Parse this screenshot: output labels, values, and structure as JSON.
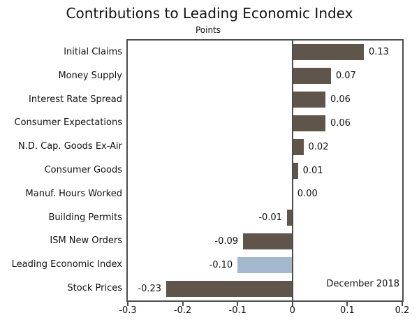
{
  "chart_data": {
    "type": "bar",
    "orientation": "horizontal",
    "title": "Contributions to Leading Economic Index",
    "units_label": "Points",
    "categories": [
      "Initial Claims",
      "Money Supply",
      "Interest Rate Spread",
      "Consumer Expectations",
      "N.D. Cap. Goods Ex-Air",
      "Consumer Goods",
      "Manuf. Hours Worked",
      "Building Permits",
      "ISM New Orders",
      "Leading Economic Index",
      "Stock Prices"
    ],
    "values": [
      0.13,
      0.07,
      0.06,
      0.06,
      0.02,
      0.01,
      0.0,
      -0.01,
      -0.09,
      -0.1,
      -0.23
    ],
    "value_labels": [
      "0.13",
      "0.07",
      "0.06",
      "0.06",
      "0.02",
      "0.01",
      "0.00",
      "-0.01",
      "-0.09",
      "-0.10",
      "-0.23"
    ],
    "annotation": "December 2018",
    "xlim": [
      -0.3,
      0.2
    ],
    "xticks": [
      -0.3,
      -0.2,
      -0.1,
      0,
      0.1,
      0.2
    ],
    "xtick_labels": [
      "-0.3",
      "-0.2",
      "-0.1",
      "0",
      "0.1",
      "0.2"
    ],
    "bar_color": "#5F554A",
    "highlight_color": "#A3B8CC",
    "highlight_category": "Leading Economic Index",
    "axis_color": "#4d4d4d",
    "grid": "off",
    "legend": "none"
  }
}
